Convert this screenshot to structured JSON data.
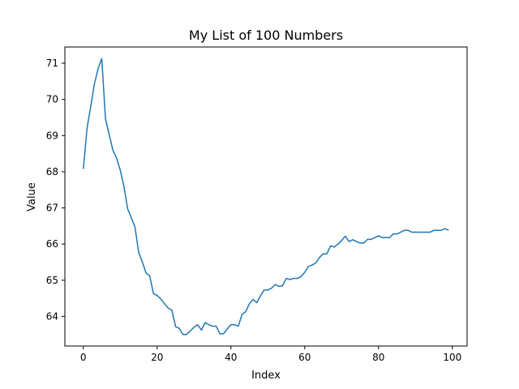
{
  "chart_data": {
    "type": "line",
    "title": "My List of 100 Numbers",
    "xlabel": "Index",
    "ylabel": "Value",
    "xlim": [
      -5,
      104
    ],
    "ylim": [
      63.18,
      71.45
    ],
    "xticks": [
      0,
      20,
      40,
      60,
      80,
      100
    ],
    "yticks": [
      64,
      65,
      66,
      67,
      68,
      69,
      70,
      71
    ],
    "grid": false,
    "series": [
      {
        "color": "#1f77b4",
        "x": [
          0,
          1,
          2,
          3,
          4,
          5,
          6,
          7,
          8,
          9,
          10,
          11,
          12,
          13,
          14,
          15,
          16,
          17,
          18,
          19,
          20,
          21,
          22,
          23,
          24,
          25,
          26,
          27,
          28,
          29,
          30,
          31,
          32,
          33,
          34,
          35,
          36,
          37,
          38,
          39,
          40,
          41,
          42,
          43,
          44,
          45,
          46,
          47,
          48,
          49,
          50,
          51,
          52,
          53,
          54,
          55,
          56,
          57,
          58,
          59,
          60,
          61,
          62,
          63,
          64,
          65,
          66,
          67,
          68,
          69,
          70,
          71,
          72,
          73,
          74,
          75,
          76,
          77,
          78,
          79,
          80,
          81,
          82,
          83,
          84,
          85,
          86,
          87,
          88,
          89,
          90,
          91,
          92,
          93,
          94,
          95,
          96,
          97,
          98,
          99
        ],
        "values": [
          68.08,
          69.2,
          69.8,
          70.43,
          70.85,
          71.13,
          69.47,
          69.03,
          68.6,
          68.38,
          68.05,
          67.6,
          66.98,
          66.73,
          66.47,
          65.77,
          65.5,
          65.2,
          65.12,
          64.63,
          64.58,
          64.48,
          64.35,
          64.23,
          64.17,
          63.72,
          63.67,
          63.5,
          63.5,
          63.6,
          63.7,
          63.77,
          63.62,
          63.83,
          63.77,
          63.73,
          63.73,
          63.52,
          63.52,
          63.65,
          63.77,
          63.77,
          63.73,
          64.05,
          64.13,
          64.35,
          64.47,
          64.38,
          64.57,
          64.73,
          64.73,
          64.78,
          64.88,
          64.83,
          64.85,
          65.05,
          65.02,
          65.05,
          65.05,
          65.1,
          65.22,
          65.38,
          65.42,
          65.48,
          65.63,
          65.73,
          65.73,
          65.95,
          65.92,
          66.0,
          66.1,
          66.22,
          66.07,
          66.12,
          66.07,
          66.03,
          66.03,
          66.13,
          66.13,
          66.18,
          66.23,
          66.18,
          66.18,
          66.18,
          66.28,
          66.28,
          66.33,
          66.38,
          66.38,
          66.33,
          66.33,
          66.33,
          66.33,
          66.33,
          66.33,
          66.38,
          66.38,
          66.38,
          66.43,
          66.38
        ]
      }
    ]
  }
}
